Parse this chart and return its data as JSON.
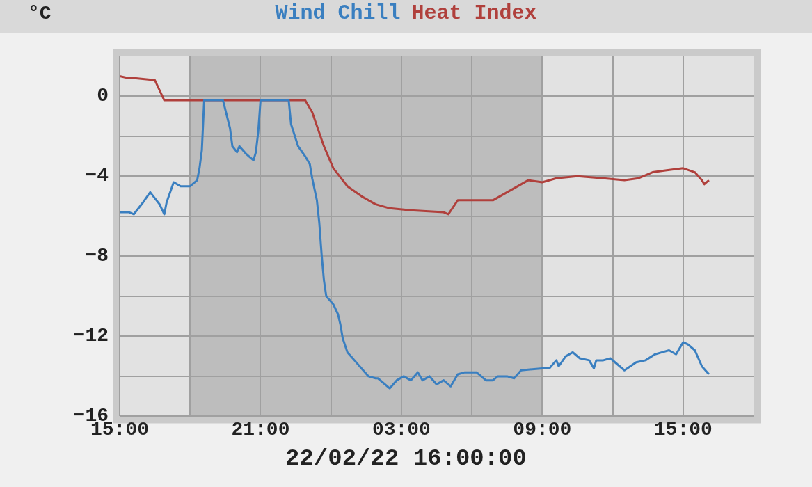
{
  "chart_data": {
    "type": "line",
    "ylabel": "°C",
    "annotations": [
      "22/02/22 16:00:00"
    ],
    "xlim": [
      "--02-21T15:00",
      "--02-22T18:00"
    ],
    "xticks": [
      {
        "value": "--02-21T15:00",
        "label": "15:00"
      },
      {
        "value": "--02-21T18:00",
        "label": null
      },
      {
        "value": "--02-21T21:00",
        "label": "21:00"
      },
      {
        "value": "--02-22T00:00",
        "label": null
      },
      {
        "value": "--02-22T03:00",
        "label": "03:00"
      },
      {
        "value": "--02-22T06:00",
        "label": null
      },
      {
        "value": "--02-22T09:00",
        "label": "09:00"
      },
      {
        "value": "--02-22T12:00",
        "label": null
      },
      {
        "value": "--02-22T15:00",
        "label": "15:00"
      }
    ],
    "ylim": [
      -16,
      2
    ],
    "yticks": [
      -16,
      {
        "value": -14,
        "label": null
      },
      -12,
      {
        "value": -10,
        "label": null
      },
      -8,
      {
        "value": -6,
        "label": null
      },
      -4,
      {
        "value": -2,
        "label": null
      },
      0
    ],
    "grid": true,
    "legend": "top",
    "marker": "none",
    "line_style": "solid",
    "bands": [
      {
        "axis": "x",
        "from": "--02-21T18:00",
        "to": "--02-22T09:00",
        "color": "#bdbdbd"
      }
    ],
    "series": [
      {
        "name": "Wind Chill",
        "color": "#3a7fc0",
        "x": [
          "--02-21T15:00",
          "--02-21T15:24",
          "--02-21T15:36",
          "--02-21T16:00",
          "--02-21T16:18",
          "--02-21T16:42",
          "--02-21T16:54",
          "--02-21T17:00",
          "--02-21T17:18",
          "--02-21T17:36",
          "--02-21T18:00",
          "--02-21T18:18",
          "--02-21T18:24",
          "--02-21T18:30",
          "--02-21T18:36",
          "--02-21T19:24",
          "--02-21T19:42",
          "--02-21T19:48",
          "--02-21T20:00",
          "--02-21T20:06",
          "--02-21T20:24",
          "--02-21T20:42",
          "--02-21T20:48",
          "--02-21T20:54",
          "--02-21T21:00",
          "--02-21T22:12",
          "--02-21T22:18",
          "--02-21T22:36",
          "--02-21T22:54",
          "--02-21T23:06",
          "--02-21T23:12",
          "--02-21T23:24",
          "--02-21T23:30",
          "--02-21T23:36",
          "--02-21T23:42",
          "--02-21T23:48",
          "--02-22T00:06",
          "--02-22T00:18",
          "--02-22T00:24",
          "--02-22T00:30",
          "--02-22T00:42",
          "--02-22T01:00",
          "--02-22T01:18",
          "--02-22T01:36",
          "--02-22T01:54",
          "--02-22T02:00",
          "--02-22T02:30",
          "--02-22T02:48",
          "--02-22T03:06",
          "--02-22T03:24",
          "--02-22T03:42",
          "--02-22T03:54",
          "--02-22T04:12",
          "--02-22T04:30",
          "--02-22T04:48",
          "--02-22T05:06",
          "--02-22T05:24",
          "--02-22T05:42",
          "--02-22T06:12",
          "--02-22T06:36",
          "--02-22T06:54",
          "--02-22T07:06",
          "--02-22T07:30",
          "--02-22T07:48",
          "--02-22T08:06",
          "--02-22T09:00",
          "--02-22T09:18",
          "--02-22T09:36",
          "--02-22T09:42",
          "--02-22T10:00",
          "--02-22T10:18",
          "--02-22T10:36",
          "--02-22T11:00",
          "--02-22T11:12",
          "--02-22T11:18",
          "--02-22T11:36",
          "--02-22T11:54",
          "--02-22T12:30",
          "--02-22T13:00",
          "--02-22T13:24",
          "--02-22T13:48",
          "--02-22T14:06",
          "--02-22T14:24",
          "--02-22T14:42",
          "--02-22T15:00",
          "--02-22T15:12",
          "--02-22T15:30",
          "--02-22T15:48",
          "--02-22T16:06"
        ],
        "values": [
          -5.8,
          -5.8,
          -5.9,
          -5.3,
          -4.8,
          -5.4,
          -5.9,
          -5.3,
          -4.3,
          -4.5,
          -4.5,
          -4.2,
          -3.6,
          -2.7,
          -0.2,
          -0.2,
          -1.6,
          -2.5,
          -2.8,
          -2.5,
          -2.9,
          -3.2,
          -2.8,
          -1.8,
          -0.2,
          -0.2,
          -1.4,
          -2.5,
          -3.0,
          -3.4,
          -4.1,
          -5.2,
          -6.3,
          -7.9,
          -9.2,
          -10.0,
          -10.4,
          -10.9,
          -11.4,
          -12.1,
          -12.8,
          -13.2,
          -13.6,
          -14.0,
          -14.1,
          -14.1,
          -14.6,
          -14.2,
          -14.0,
          -14.2,
          -13.8,
          -14.2,
          -14.0,
          -14.4,
          -14.2,
          -14.5,
          -13.9,
          -13.8,
          -13.8,
          -14.2,
          -14.2,
          -14.0,
          -14.0,
          -14.1,
          -13.7,
          -13.6,
          -13.6,
          -13.2,
          -13.5,
          -13.0,
          -12.8,
          -13.1,
          -13.2,
          -13.6,
          -13.2,
          -13.2,
          -13.1,
          -13.7,
          -13.3,
          -13.2,
          -12.9,
          -12.8,
          -12.7,
          -12.9,
          -12.3,
          -12.4,
          -12.7,
          -13.5,
          -13.9
        ]
      },
      {
        "name": "Heat Index",
        "color": "#b0403c",
        "x": [
          "--02-21T15:00",
          "--02-21T15:24",
          "--02-21T15:42",
          "--02-21T16:30",
          "--02-21T16:54",
          "--02-21T22:18",
          "--02-21T22:54",
          "--02-21T23:12",
          "--02-21T23:42",
          "--02-22T00:06",
          "--02-22T00:42",
          "--02-22T01:18",
          "--02-22T01:54",
          "--02-22T02:30",
          "--02-22T03:24",
          "--02-22T04:48",
          "--02-22T05:00",
          "--02-22T05:24",
          "--02-22T06:54",
          "--02-22T07:30",
          "--02-22T08:24",
          "--02-22T09:00",
          "--02-22T09:36",
          "--02-22T10:30",
          "--02-22T11:36",
          "--02-22T12:30",
          "--02-22T13:06",
          "--02-22T13:42",
          "--02-22T14:18",
          "--02-22T15:00",
          "--02-22T15:30",
          "--02-22T15:48",
          "--02-22T15:54",
          "--02-22T16:06"
        ],
        "values": [
          1.0,
          0.9,
          0.9,
          0.8,
          -0.2,
          -0.2,
          -0.2,
          -0.8,
          -2.5,
          -3.6,
          -4.5,
          -5.0,
          -5.4,
          -5.6,
          -5.7,
          -5.8,
          -5.9,
          -5.2,
          -5.2,
          -4.8,
          -4.2,
          -4.3,
          -4.1,
          -4.0,
          -4.1,
          -4.2,
          -4.1,
          -3.8,
          -3.7,
          -3.6,
          -3.8,
          -4.2,
          -4.4,
          -4.2
        ]
      }
    ]
  }
}
